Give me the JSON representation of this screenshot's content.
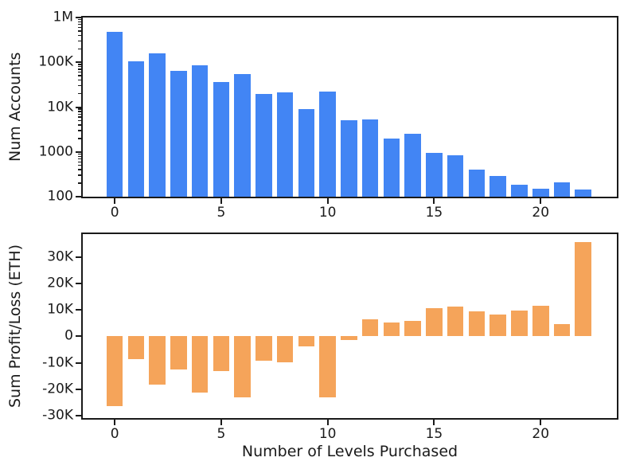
{
  "figure": {
    "background": "#ffffff",
    "spine_color": "#1a1a1a",
    "text_color": "#1a1a1a"
  },
  "chart_data": [
    {
      "type": "bar",
      "name": "num-accounts-histogram",
      "title": "",
      "xlabel": "",
      "ylabel": "Num Accounts",
      "yscale": "log",
      "ylim": [
        100,
        1000000
      ],
      "xlim": [
        -1.5,
        23.58
      ],
      "grid": false,
      "legend": "none",
      "bar_color": "#4285F4",
      "bar_width": 0.77,
      "x": [
        0,
        1,
        2,
        3,
        4,
        5,
        6,
        7,
        8,
        9,
        10,
        11,
        12,
        13,
        14,
        15,
        16,
        17,
        18,
        19,
        20,
        21,
        22
      ],
      "values": [
        480000,
        105000,
        160000,
        65000,
        85000,
        37000,
        55000,
        20000,
        21500,
        9000,
        22000,
        5000,
        5400,
        2000,
        2500,
        950,
        850,
        400,
        290,
        185,
        150,
        205,
        145
      ],
      "yticks": [
        {
          "value": 1000000,
          "label": "1M"
        },
        {
          "value": 100000,
          "label": "100K"
        },
        {
          "value": 10000,
          "label": "10K"
        },
        {
          "value": 1000,
          "label": "1000"
        },
        {
          "value": 100,
          "label": "100"
        }
      ],
      "xticks": [
        {
          "value": 0,
          "label": "0"
        },
        {
          "value": 5,
          "label": "5"
        },
        {
          "value": 10,
          "label": "10"
        },
        {
          "value": 15,
          "label": "15"
        },
        {
          "value": 20,
          "label": "20"
        }
      ]
    },
    {
      "type": "bar",
      "name": "sum-profit-loss-bars",
      "title": "",
      "xlabel": "Number of Levels Purchased",
      "ylabel": "Sum Profit/Loss (ETH)",
      "yscale": "linear",
      "ylim": [
        -30900,
        38600
      ],
      "xlim": [
        -1.5,
        23.58
      ],
      "grid": false,
      "legend": "none",
      "bar_color": "#F5A45A",
      "bar_width": 0.77,
      "x": [
        0,
        1,
        2,
        3,
        4,
        5,
        6,
        7,
        8,
        9,
        10,
        11,
        12,
        13,
        14,
        15,
        16,
        17,
        18,
        19,
        20,
        21,
        22
      ],
      "values": [
        -26500,
        -8700,
        -18400,
        -12700,
        -21200,
        -13200,
        -23200,
        -9100,
        -9700,
        -3900,
        -23000,
        -1300,
        6400,
        5100,
        5900,
        10600,
        11300,
        9500,
        8300,
        9800,
        11600,
        4500,
        35500
      ],
      "yticks": [
        {
          "value": 30000,
          "label": "30K"
        },
        {
          "value": 20000,
          "label": "20K"
        },
        {
          "value": 10000,
          "label": "10K"
        },
        {
          "value": 0,
          "label": "0"
        },
        {
          "value": -10000,
          "label": "-10K"
        },
        {
          "value": -20000,
          "label": "-20K"
        },
        {
          "value": -30000,
          "label": "-30K"
        }
      ],
      "xticks": [
        {
          "value": 0,
          "label": "0"
        },
        {
          "value": 5,
          "label": "5"
        },
        {
          "value": 10,
          "label": "10"
        },
        {
          "value": 15,
          "label": "15"
        },
        {
          "value": 20,
          "label": "20"
        }
      ]
    }
  ]
}
